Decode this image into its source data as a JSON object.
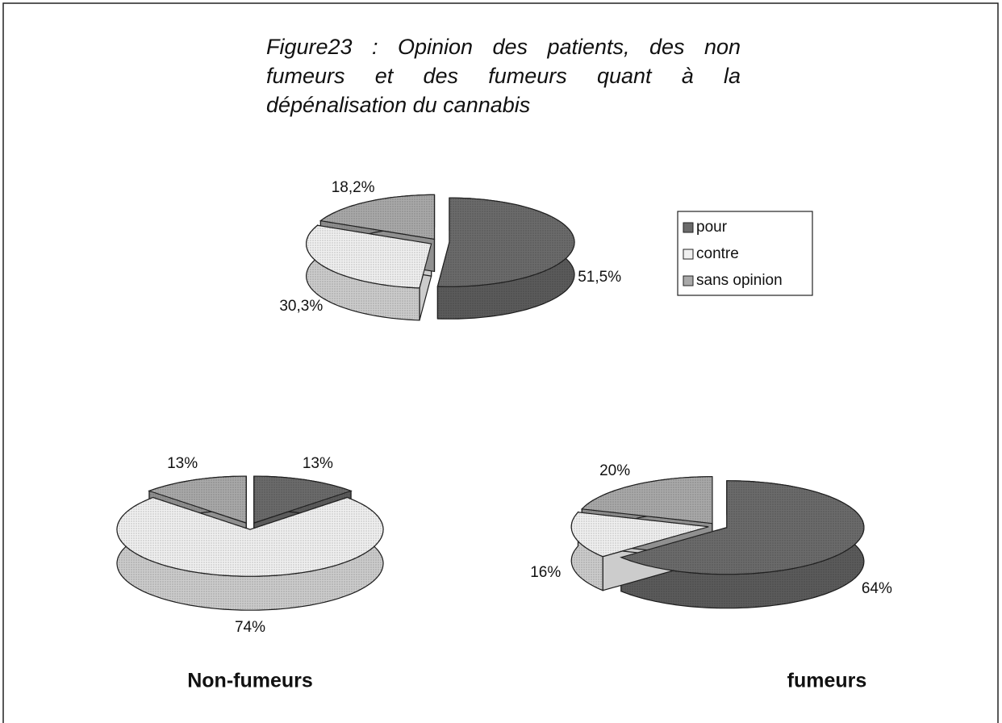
{
  "title": "Figure23 : Opinion des patients, des non fumeurs et des fumeurs quant à la dépénalisation du cannabis",
  "chart_data": [
    {
      "type": "pie",
      "categories": [
        "pour",
        "contre",
        "sans opinion"
      ],
      "values": [
        51.5,
        30.3,
        18.2
      ],
      "value_labels": [
        "51,5%",
        "30,3%",
        "18,2%"
      ],
      "colors": [
        "#6b6b6b",
        "#f0f0f0",
        "#a9a9a9"
      ]
    },
    {
      "type": "pie",
      "title": "Non-fumeurs",
      "categories": [
        "pour",
        "contre",
        "sans opinion"
      ],
      "values": [
        13,
        74,
        13
      ],
      "value_labels": [
        "13%",
        "74%",
        "13%"
      ],
      "colors": [
        "#6b6b6b",
        "#f0f0f0",
        "#a9a9a9"
      ]
    },
    {
      "type": "pie",
      "title": "fumeurs",
      "categories": [
        "pour",
        "contre",
        "sans opinion"
      ],
      "values": [
        64,
        16,
        20
      ],
      "value_labels": [
        "64%",
        "16%",
        "20%"
      ],
      "colors": [
        "#6b6b6b",
        "#f0f0f0",
        "#a9a9a9"
      ]
    }
  ]
}
